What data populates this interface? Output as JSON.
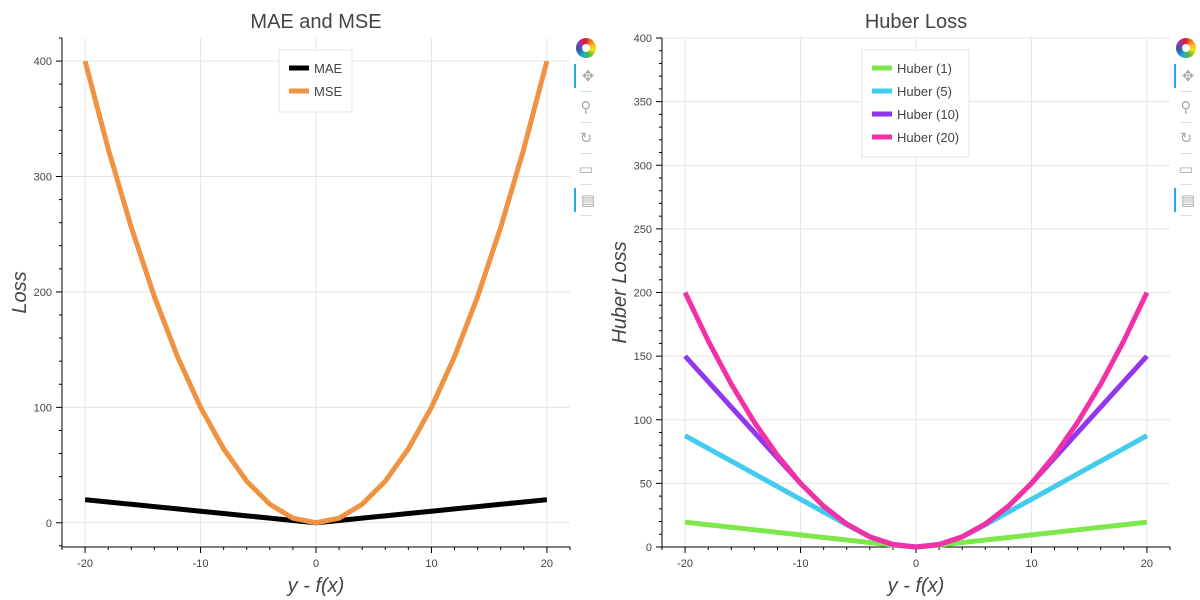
{
  "chart_data": [
    {
      "type": "line",
      "title": "MAE and MSE",
      "xlabel": "y - f(x)",
      "ylabel": "Loss",
      "xlim": [
        -22,
        22
      ],
      "ylim": [
        -21,
        420
      ],
      "xticks": [
        -20,
        -10,
        0,
        10,
        20
      ],
      "yticks": [
        0,
        100,
        200,
        300,
        400
      ],
      "xtick_labels": [
        "-20",
        "-10",
        "0",
        "10",
        "20"
      ],
      "ytick_labels": [
        "0",
        "100",
        "200",
        "300",
        "400"
      ],
      "grid": true,
      "legend_position": "top-center",
      "x": [
        -20,
        -18,
        -16,
        -14,
        -12,
        -10,
        -8,
        -6,
        -4,
        -2,
        0,
        2,
        4,
        6,
        8,
        10,
        12,
        14,
        16,
        18,
        20
      ],
      "series": [
        {
          "name": "MAE",
          "color": "#000000",
          "values": [
            20,
            18,
            16,
            14,
            12,
            10,
            8,
            6,
            4,
            2,
            0,
            2,
            4,
            6,
            8,
            10,
            12,
            14,
            16,
            18,
            20
          ]
        },
        {
          "name": "MSE",
          "color": "#ef9343",
          "values": [
            400,
            324,
            256,
            196,
            144,
            100,
            64,
            36,
            16,
            4,
            0,
            4,
            16,
            36,
            64,
            100,
            144,
            196,
            256,
            324,
            400
          ]
        }
      ]
    },
    {
      "type": "line",
      "title": "Huber Loss",
      "xlabel": "y - f(x)",
      "ylabel": "Huber Loss",
      "xlim": [
        -22,
        22
      ],
      "ylim": [
        0,
        400
      ],
      "xticks": [
        -20,
        -10,
        0,
        10,
        20
      ],
      "yticks": [
        0,
        50,
        100,
        150,
        200,
        250,
        300,
        350,
        400
      ],
      "xtick_labels": [
        "-20",
        "-10",
        "0",
        "10",
        "20"
      ],
      "ytick_labels": [
        "0",
        "50",
        "100",
        "150",
        "200",
        "250",
        "300",
        "350",
        "400"
      ],
      "grid": true,
      "legend_position": "top-left",
      "x": [
        -20,
        -18,
        -16,
        -14,
        -12,
        -10,
        -8,
        -6,
        -4,
        -2,
        0,
        2,
        4,
        6,
        8,
        10,
        12,
        14,
        16,
        18,
        20
      ],
      "series": [
        {
          "name": "Huber (1)",
          "color": "#7de84a",
          "values": [
            19.5,
            17.5,
            15.5,
            13.5,
            11.5,
            9.5,
            7.5,
            5.5,
            3.5,
            1.5,
            0,
            1.5,
            3.5,
            5.5,
            7.5,
            9.5,
            11.5,
            13.5,
            15.5,
            17.5,
            19.5
          ]
        },
        {
          "name": "Huber (5)",
          "color": "#42cdee",
          "values": [
            87.5,
            77.5,
            67.5,
            57.5,
            47.5,
            37.5,
            27.5,
            17.5,
            8,
            2,
            0,
            2,
            8,
            17.5,
            27.5,
            37.5,
            47.5,
            57.5,
            67.5,
            77.5,
            87.5
          ]
        },
        {
          "name": "Huber (10)",
          "color": "#9236ee",
          "values": [
            150,
            130,
            110,
            90,
            70,
            50,
            32,
            18,
            8,
            2,
            0,
            2,
            8,
            18,
            32,
            50,
            70,
            90,
            110,
            130,
            150
          ]
        },
        {
          "name": "Huber (20)",
          "color": "#f231a8",
          "values": [
            200,
            162,
            128,
            98,
            72,
            50,
            32,
            18,
            8,
            2,
            0,
            2,
            8,
            18,
            32,
            50,
            72,
            98,
            128,
            162,
            200
          ]
        }
      ]
    }
  ],
  "toolbar": {
    "items": [
      {
        "icon": "pan-icon",
        "glyph": "✥",
        "active": true
      },
      {
        "icon": "wheel-zoom-icon",
        "glyph": "⚲",
        "active": false
      },
      {
        "icon": "reset-icon",
        "glyph": "↻",
        "active": false
      },
      {
        "icon": "save-icon",
        "glyph": "▭",
        "active": false
      },
      {
        "icon": "hover-icon",
        "glyph": "▤",
        "active": true
      }
    ]
  }
}
